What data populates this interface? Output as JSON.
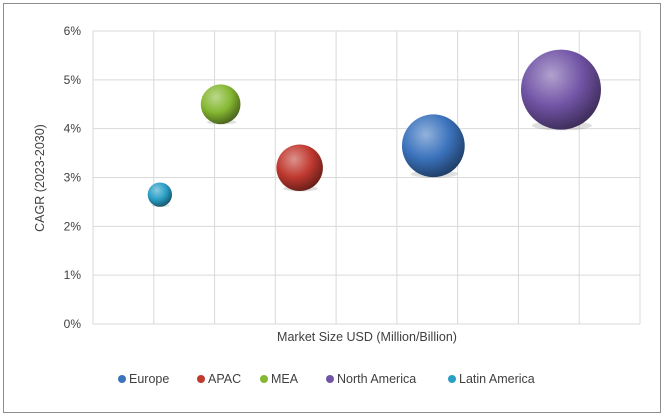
{
  "chart_data": {
    "type": "scatter",
    "xlabel": "Market Size USD (Million/Billion)",
    "ylabel": "CAGR (2023-2030)",
    "ylim": [
      0,
      6
    ],
    "y_ticks": [
      "0%",
      "1%",
      "2%",
      "3%",
      "4%",
      "5%",
      "6%"
    ],
    "x_ticks_labeled": false,
    "grid": true,
    "legend": "bottom",
    "series": [
      {
        "name": "Europe",
        "x": 5.6,
        "y": 3.65,
        "size": 4.0,
        "color": "#3b73bd"
      },
      {
        "name": "APAC",
        "x": 3.4,
        "y": 3.2,
        "size": 2.2,
        "color": "#c0392f"
      },
      {
        "name": "MEA",
        "x": 2.1,
        "y": 4.5,
        "size": 1.6,
        "color": "#86b832"
      },
      {
        "name": "North America",
        "x": 7.7,
        "y": 4.8,
        "size": 6.5,
        "color": "#7254a6"
      },
      {
        "name": "Latin America",
        "x": 1.1,
        "y": 2.65,
        "size": 0.6,
        "color": "#2a9fc6"
      }
    ]
  }
}
